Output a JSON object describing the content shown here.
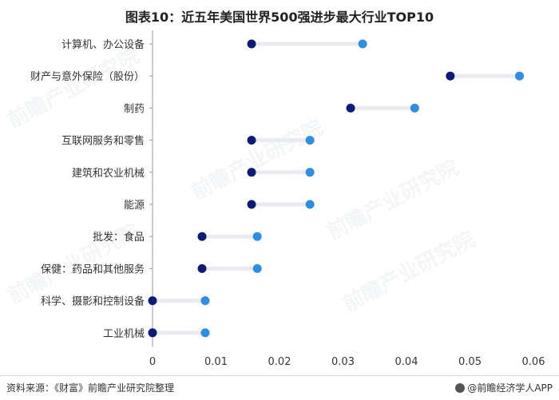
{
  "title": "图表10：近五年美国世界500强进步最大行业TOP10",
  "footer": {
    "source": "资料来源：《财富》前瞻产业研究院整理",
    "brand": "@前瞻经济学人APP"
  },
  "watermark": "前瞻产业研究院",
  "colors": {
    "start_dot": "#0d1a7a",
    "end_dot": "#2e8ee3",
    "bar": "#e9ebf1",
    "axis": "#999999"
  },
  "chart_data": {
    "type": "dumbbell",
    "title": "图表10：近五年美国世界500强进步最大行业TOP10",
    "xlabel": "",
    "ylabel": "",
    "xlim": [
      0,
      0.06
    ],
    "xticks": [
      "0",
      "0.01",
      "0.02",
      "0.03",
      "0.04",
      "0.05",
      "0.06"
    ],
    "xtick_values": [
      0,
      0.01,
      0.02,
      0.03,
      0.04,
      0.05,
      0.06
    ],
    "grid": false,
    "legend": "none",
    "categories": [
      "计算机、办公设备",
      "财产与意外保险（股份）",
      "制药",
      "互联网服务和零售",
      "建筑和农业机械",
      "能源",
      "批发：食品",
      "保健：药品和其他服务",
      "科学、摄影和控制设备",
      "工业机械"
    ],
    "start": [
      0.0156,
      0.0469,
      0.0312,
      0.0156,
      0.0156,
      0.0156,
      0.0078,
      0.0078,
      0.0,
      0.0
    ],
    "end": [
      0.0331,
      0.0578,
      0.0413,
      0.0248,
      0.0248,
      0.0248,
      0.0165,
      0.0165,
      0.0083,
      0.0083
    ]
  }
}
